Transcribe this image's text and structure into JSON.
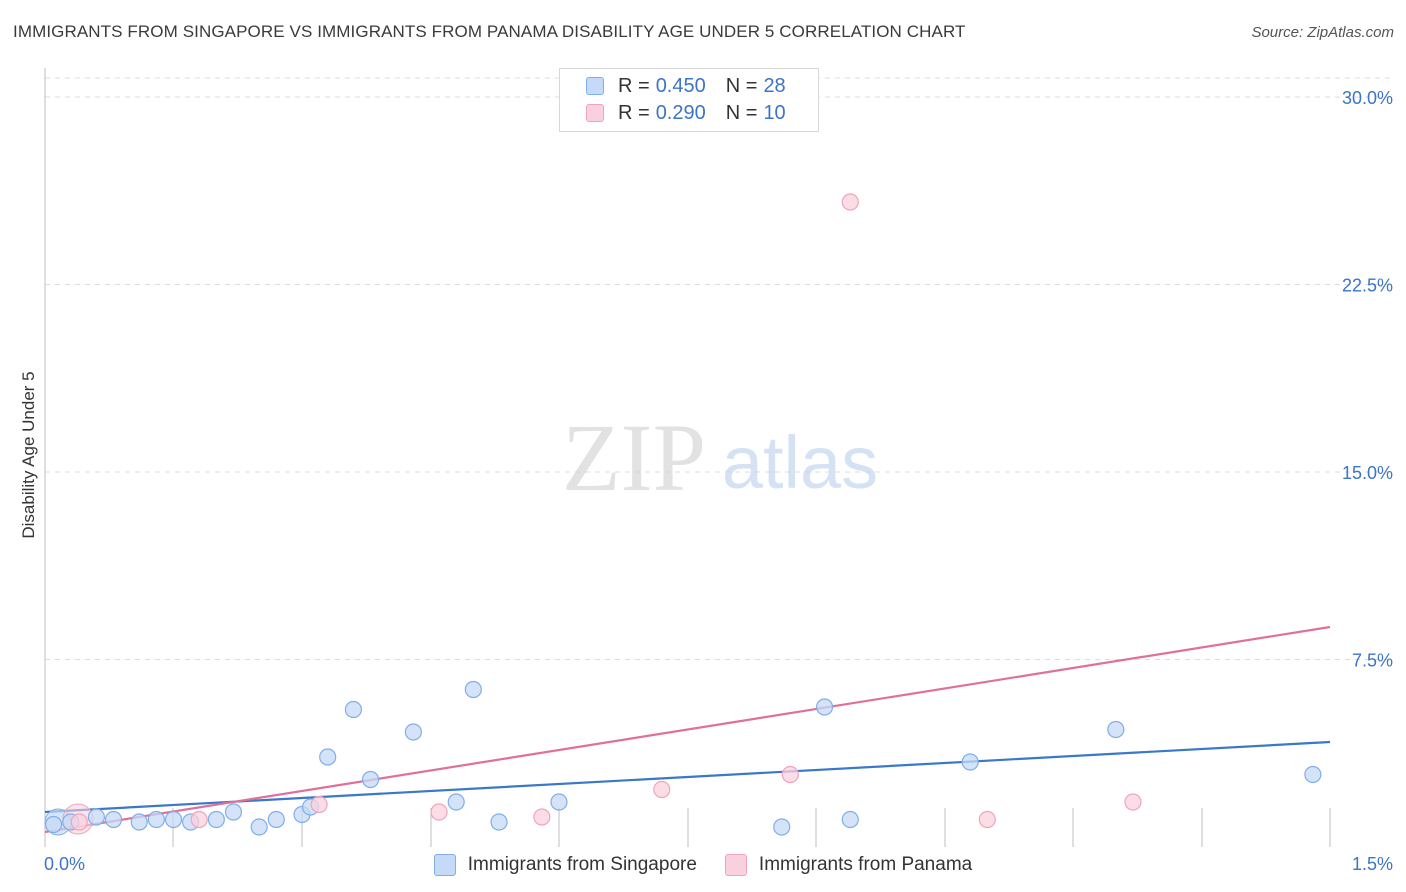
{
  "chart_data": {
    "type": "scatter",
    "title": "IMMIGRANTS FROM SINGAPORE VS IMMIGRANTS FROM PANAMA DISABILITY AGE UNDER 5 CORRELATION CHART",
    "source": "Source: ZipAtlas.com",
    "ylabel": "Disability Age Under 5",
    "xlabel": "",
    "xlim": [
      0,
      1.5
    ],
    "ylim": [
      0,
      31
    ],
    "x_tick_labels": [
      "0.0%",
      "1.5%"
    ],
    "y_ticks": [
      7.5,
      15.0,
      22.5,
      30.0
    ],
    "y_tick_labels": [
      "7.5%",
      "15.0%",
      "22.5%",
      "30.0%"
    ],
    "grid": true,
    "watermark": {
      "zip": "ZIP",
      "atlas": "atlas"
    },
    "legend_position": "top-center",
    "series": [
      {
        "name": "Immigrants from Singapore",
        "r_label": "R =",
        "r_value": "0.450",
        "n_label": "N =",
        "n_value": "28",
        "color": "#7faee8",
        "fill": "#c5daf6",
        "line_color": "#3a78c9",
        "trend": [
          [
            0.0,
            1.4
          ],
          [
            1.5,
            4.2
          ]
        ],
        "points": [
          [
            0.01,
            0.9
          ],
          [
            0.03,
            1.0
          ],
          [
            0.06,
            1.2
          ],
          [
            0.08,
            1.1
          ],
          [
            0.11,
            1.0
          ],
          [
            0.13,
            1.1
          ],
          [
            0.15,
            1.1
          ],
          [
            0.17,
            1.0
          ],
          [
            0.2,
            1.1
          ],
          [
            0.22,
            1.4
          ],
          [
            0.25,
            0.8
          ],
          [
            0.27,
            1.1
          ],
          [
            0.3,
            1.3
          ],
          [
            0.31,
            1.6
          ],
          [
            0.33,
            3.6
          ],
          [
            0.36,
            5.5
          ],
          [
            0.38,
            2.7
          ],
          [
            0.43,
            4.6
          ],
          [
            0.48,
            1.8
          ],
          [
            0.5,
            6.3
          ],
          [
            0.53,
            1.0
          ],
          [
            0.6,
            1.8
          ],
          [
            0.86,
            0.8
          ],
          [
            0.91,
            5.6
          ],
          [
            0.94,
            1.1
          ],
          [
            1.08,
            3.4
          ],
          [
            1.25,
            4.7
          ],
          [
            1.48,
            2.9
          ]
        ]
      },
      {
        "name": "Immigrants from Panama",
        "r_label": "R =",
        "r_value": "0.290",
        "n_label": "N =",
        "n_value": "10",
        "color": "#f2a3bc",
        "fill": "#f9d1de",
        "line_color": "#e0709a",
        "trend": [
          [
            0.0,
            0.6
          ],
          [
            1.5,
            8.8
          ]
        ],
        "points": [
          [
            0.04,
            1.0
          ],
          [
            0.18,
            1.1
          ],
          [
            0.32,
            1.7
          ],
          [
            0.46,
            1.4
          ],
          [
            0.58,
            1.2
          ],
          [
            0.72,
            2.3
          ],
          [
            0.87,
            2.9
          ],
          [
            0.94,
            25.8
          ],
          [
            1.1,
            1.1
          ],
          [
            1.27,
            1.8
          ]
        ]
      }
    ]
  }
}
